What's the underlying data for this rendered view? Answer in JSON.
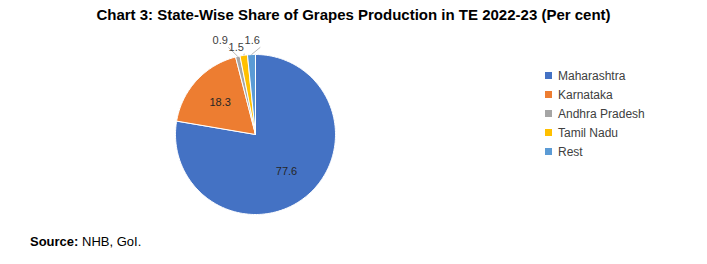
{
  "chart_data": {
    "type": "pie",
    "title": "Chart 3: State-Wise Share of Grapes Production in TE 2022-23 (Per cent)",
    "categories": [
      "Maharashtra",
      "Karnataka",
      "Andhra Pradesh",
      "Tamil Nadu",
      "Rest"
    ],
    "values": [
      77.6,
      18.3,
      0.9,
      1.5,
      1.6
    ],
    "colors": [
      "#4472c4",
      "#ed7d31",
      "#a5a5a5",
      "#ffc000",
      "#5b9bd5"
    ],
    "data_labels": true,
    "legend": "right",
    "source": "Source: NHB, GoI."
  }
}
